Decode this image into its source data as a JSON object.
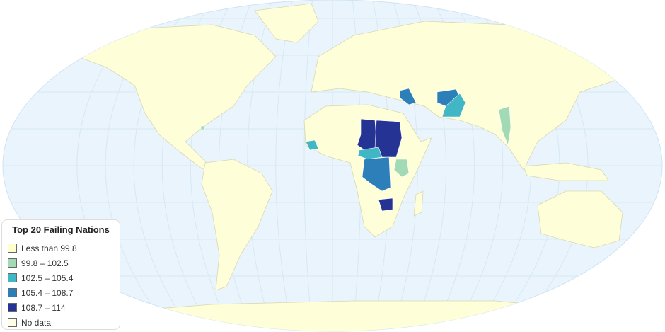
{
  "legend": {
    "title": "Top 20 Failing Nations",
    "items": [
      {
        "label": "Less than 99.8",
        "color": "#ffffcc"
      },
      {
        "label": "99.8 – 102.5",
        "color": "#a1dab4"
      },
      {
        "label": "102.5 – 105.4",
        "color": "#41b6c4"
      },
      {
        "label": "105.4 – 108.7",
        "color": "#2c7fb8"
      },
      {
        "label": "108.7 – 114",
        "color": "#253494"
      },
      {
        "label": "No data",
        "color": "#fefee6"
      }
    ]
  },
  "colors": {
    "ocean": "#eaf4fc",
    "land": "#fefed8",
    "border": "#d8d8b0",
    "graticule": "#d6e8f5"
  }
}
